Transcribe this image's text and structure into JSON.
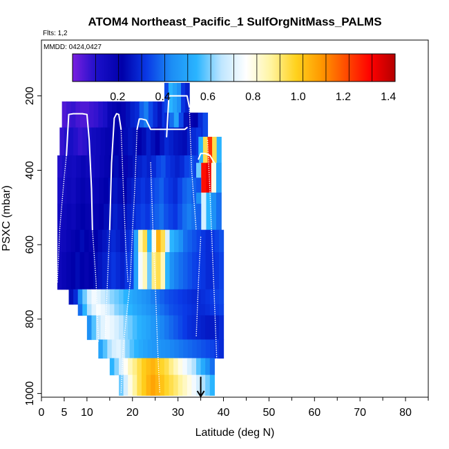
{
  "chart_data": {
    "type": "heatmap",
    "title": "ATOM4 Northeast_Pacific_1 SulfOrgNitMass_PALMS",
    "flights_label": "Flts: 1,2",
    "dates_label": "MMDD: 0424,0427",
    "xlabel": "Latitude (deg N)",
    "ylabel": "PSXC (mbar)",
    "xlim": [
      0,
      85
    ],
    "ylim": [
      1010,
      50
    ],
    "x_ticks": [
      0,
      5,
      10,
      20,
      30,
      40,
      50,
      60,
      70,
      80
    ],
    "x_tick_labels": [
      "0",
      "5",
      "10",
      "20",
      "30",
      "40",
      "50",
      "60",
      "70",
      "80"
    ],
    "x_minor_ticks": [
      15,
      25,
      35,
      45,
      55,
      65,
      75,
      85
    ],
    "y_ticks": [
      200,
      400,
      600,
      800,
      1000
    ],
    "y_tick_labels": [
      "200",
      "400",
      "600",
      "800",
      "1000"
    ],
    "colorbar": {
      "range": [
        0,
        1.43
      ],
      "ticks": [
        0.2,
        0.4,
        0.6,
        0.8,
        1.0,
        1.2,
        1.4
      ],
      "tick_labels": [
        "0.2",
        "0.4",
        "0.6",
        "0.8",
        "1.0",
        "1.2",
        "1.4"
      ],
      "colors": [
        "#7a1fe0",
        "#1a0fc8",
        "#0000aa",
        "#0a3ae6",
        "#1c8ef5",
        "#2ab4ff",
        "#bfe6ff",
        "#ffffff",
        "#fff4a0",
        "#ffd21e",
        "#ff9a00",
        "#ff4d00",
        "#ff0000",
        "#b40000"
      ]
    },
    "arrow_marker": {
      "x": 35,
      "y_top": 955,
      "y_bottom": 1008
    },
    "blocks": [
      {
        "y0": 215,
        "y1": 285,
        "x0": 4.5,
        "x1": 28.5,
        "vals": [
          0.05,
          0.07,
          0.08,
          0.06,
          0.05,
          0.05,
          0.07,
          0.08,
          0.1,
          0.12,
          0.18,
          0.2,
          0.22,
          0.2,
          0.25,
          0.28,
          0.3,
          0.38,
          0.42,
          0.35,
          0.3,
          0.26,
          0.32,
          0.28
        ]
      },
      {
        "y0": 165,
        "y1": 245,
        "x0": 27,
        "x1": 32.5,
        "vals": [
          0.35,
          0.55,
          0.5,
          0.45,
          0.32,
          0.28
        ]
      },
      {
        "y0": 245,
        "y1": 310,
        "x0": 27,
        "x1": 36.5,
        "vals": [
          0.3,
          0.4,
          0.5,
          0.35,
          0.25,
          0.2,
          0.22,
          0.3,
          0.35
        ]
      },
      {
        "y0": 285,
        "y1": 360,
        "x0": 4,
        "x1": 35,
        "vals": [
          0.08,
          0.1,
          0.12,
          0.1,
          0.08,
          0.09,
          0.12,
          0.15,
          0.16,
          0.18,
          0.2,
          0.19,
          0.22,
          0.2,
          0.24,
          0.26,
          0.25,
          0.22,
          0.24,
          0.28,
          0.25,
          0.22,
          0.26,
          0.3,
          0.28,
          0.26,
          0.25,
          0.24,
          0.28,
          0.3,
          0.32
        ]
      },
      {
        "y0": 310,
        "y1": 380,
        "x0": 34.5,
        "x1": 39.5,
        "vals": [
          0.55,
          0.95,
          1.25,
          0.95,
          0.55
        ]
      },
      {
        "y0": 360,
        "y1": 420,
        "x0": 3.5,
        "x1": 34.5,
        "vals": [
          0.1,
          0.12,
          0.15,
          0.14,
          0.16,
          0.18,
          0.16,
          0.14,
          0.16,
          0.18,
          0.2,
          0.22,
          0.24,
          0.22,
          0.2,
          0.24,
          0.26,
          0.28,
          0.3,
          0.28,
          0.3,
          0.34,
          0.36,
          0.32,
          0.3,
          0.28,
          0.3,
          0.34,
          0.36,
          0.34
        ]
      },
      {
        "y0": 380,
        "y1": 460,
        "x0": 34,
        "x1": 39.5,
        "vals": [
          0.6,
          1.3,
          1.35,
          0.8,
          0.5
        ]
      },
      {
        "y0": 420,
        "y1": 490,
        "x0": 3.5,
        "x1": 35,
        "vals": [
          0.12,
          0.14,
          0.16,
          0.15,
          0.18,
          0.2,
          0.18,
          0.16,
          0.18,
          0.2,
          0.22,
          0.24,
          0.26,
          0.24,
          0.22,
          0.26,
          0.28,
          0.3,
          0.32,
          0.3,
          0.34,
          0.36,
          0.38,
          0.34,
          0.32,
          0.3,
          0.34,
          0.38,
          0.4,
          0.38,
          0.36
        ]
      },
      {
        "y0": 460,
        "y1": 560,
        "x0": 34,
        "x1": 39.5,
        "vals": [
          0.45,
          0.7,
          0.55,
          0.45,
          0.4
        ]
      },
      {
        "y0": 490,
        "y1": 560,
        "x0": 3.5,
        "x1": 35,
        "vals": [
          0.14,
          0.16,
          0.18,
          0.17,
          0.2,
          0.22,
          0.2,
          0.18,
          0.2,
          0.22,
          0.24,
          0.26,
          0.28,
          0.26,
          0.25,
          0.28,
          0.3,
          0.32,
          0.34,
          0.32,
          0.36,
          0.38,
          0.4,
          0.36,
          0.34,
          0.32,
          0.36,
          0.4,
          0.42,
          0.4,
          0.38
        ]
      },
      {
        "y0": 560,
        "y1": 620,
        "x0": 3.5,
        "x1": 40,
        "vals": [
          0.15,
          0.16,
          0.18,
          0.2,
          0.22,
          0.24,
          0.22,
          0.2,
          0.22,
          0.24,
          0.26,
          0.28,
          0.3,
          0.28,
          0.26,
          0.3,
          0.32,
          0.5,
          0.85,
          0.95,
          0.55,
          0.8,
          1.05,
          0.95,
          0.7,
          0.55,
          0.5,
          0.45,
          0.4,
          0.38,
          0.36,
          0.34,
          0.32,
          0.3,
          0.32,
          0.34,
          0.36
        ]
      },
      {
        "y0": 620,
        "y1": 720,
        "x0": 3.5,
        "x1": 40,
        "vals": [
          0.16,
          0.18,
          0.2,
          0.22,
          0.24,
          0.22,
          0.2,
          0.22,
          0.24,
          0.26,
          0.28,
          0.3,
          0.32,
          0.3,
          0.28,
          0.32,
          0.34,
          0.5,
          0.75,
          0.85,
          0.6,
          0.9,
          0.95,
          0.85,
          0.55,
          0.45,
          0.42,
          0.4,
          0.38,
          0.36,
          0.34,
          0.33,
          0.32,
          0.3,
          0.3,
          0.32,
          0.34
        ]
      },
      {
        "y0": 720,
        "y1": 760,
        "x0": 6,
        "x1": 40,
        "vals": [
          0.25,
          0.3,
          0.45,
          0.6,
          0.7,
          0.75,
          0.72,
          0.68,
          0.65,
          0.62,
          0.6,
          0.58,
          0.55,
          0.52,
          0.5,
          0.48,
          0.46,
          0.44,
          0.42,
          0.4,
          0.38,
          0.36,
          0.35,
          0.34,
          0.33,
          0.32,
          0.31,
          0.3,
          0.3,
          0.31,
          0.32,
          0.33,
          0.34,
          0.35
        ]
      },
      {
        "y0": 760,
        "y1": 790,
        "x0": 8,
        "x1": 40,
        "vals": [
          0.4,
          0.55,
          0.65,
          0.72,
          0.76,
          0.74,
          0.7,
          0.66,
          0.62,
          0.6,
          0.58,
          0.55,
          0.52,
          0.5,
          0.48,
          0.46,
          0.44,
          0.42,
          0.4,
          0.38,
          0.36,
          0.35,
          0.34,
          0.33,
          0.32,
          0.31,
          0.3,
          0.3,
          0.31,
          0.32,
          0.33,
          0.34
        ]
      },
      {
        "y0": 790,
        "y1": 855,
        "x0": 10,
        "x1": 40,
        "vals": [
          0.45,
          0.58,
          0.66,
          0.72,
          0.75,
          0.73,
          0.7,
          0.66,
          0.62,
          0.6,
          0.57,
          0.54,
          0.52,
          0.5,
          0.47,
          0.45,
          0.43,
          0.41,
          0.39,
          0.37,
          0.35,
          0.33,
          0.31,
          0.3,
          0.29,
          0.28,
          0.27,
          0.27,
          0.28,
          0.3
        ]
      },
      {
        "y0": 855,
        "y1": 905,
        "x0": 12.5,
        "x1": 40,
        "vals": [
          0.5,
          0.58,
          0.65,
          0.7,
          0.72,
          0.68,
          0.62,
          0.58,
          0.55,
          0.52,
          0.5,
          0.48,
          0.47,
          0.46,
          0.45,
          0.44,
          0.43,
          0.42,
          0.41,
          0.4,
          0.39,
          0.38,
          0.37,
          0.36,
          0.35,
          0.34,
          0.32,
          0.3
        ]
      },
      {
        "y0": 905,
        "y1": 950,
        "x0": 15,
        "x1": 38,
        "vals": [
          0.55,
          0.62,
          0.7,
          0.78,
          0.85,
          0.9,
          0.95,
          1.0,
          1.03,
          1.05,
          1.02,
          0.98,
          0.95,
          0.9,
          0.85,
          0.8,
          0.75,
          0.7,
          0.65,
          0.58,
          0.52,
          0.45,
          0.4
        ]
      },
      {
        "y0": 950,
        "y1": 1005,
        "x0": 17,
        "x1": 38,
        "vals": [
          0.6,
          0.7,
          0.8,
          0.88,
          0.95,
          1.0,
          1.05,
          1.08,
          1.05,
          1.02,
          0.98,
          0.95,
          0.92,
          0.88,
          0.84,
          0.8,
          0.75,
          0.7,
          0.65,
          0.6,
          0.55
        ]
      }
    ],
    "flight_tracks": [
      {
        "style": "solid",
        "points": [
          [
            5.5,
            360
          ],
          [
            6,
            250
          ],
          [
            7,
            248
          ],
          [
            8,
            248
          ],
          [
            9,
            248
          ],
          [
            10,
            250
          ],
          [
            10.5,
            320
          ],
          [
            11,
            450
          ],
          [
            11.2,
            560
          ]
        ]
      },
      {
        "style": "solid",
        "points": [
          [
            15,
            560
          ],
          [
            15.4,
            380
          ],
          [
            16,
            260
          ],
          [
            16.5,
            248
          ],
          [
            17,
            250
          ],
          [
            17.5,
            290
          ]
        ]
      },
      {
        "style": "solid",
        "points": [
          [
            21,
            290
          ],
          [
            21.5,
            262
          ],
          [
            22,
            262
          ],
          [
            23,
            265
          ],
          [
            24,
            290
          ],
          [
            25,
            290
          ],
          [
            27,
            290
          ],
          [
            29,
            290
          ],
          [
            31.5,
            290
          ],
          [
            32,
            285
          ]
        ]
      },
      {
        "style": "solid",
        "points": [
          [
            27.5,
            310
          ],
          [
            28,
            200
          ],
          [
            29,
            200
          ],
          [
            31,
            200
          ],
          [
            32,
            200
          ],
          [
            32.5,
            230
          ]
        ]
      },
      {
        "style": "solid",
        "points": [
          [
            34.5,
            370
          ],
          [
            35,
            355
          ],
          [
            36,
            355
          ],
          [
            37,
            360
          ],
          [
            38,
            380
          ]
        ]
      },
      {
        "style": "dotted",
        "points": [
          [
            3.5,
            700
          ],
          [
            4,
            560
          ],
          [
            5,
            420
          ],
          [
            5.5,
            360
          ]
        ]
      },
      {
        "style": "dotted",
        "points": [
          [
            11.2,
            560
          ],
          [
            12,
            700
          ],
          [
            12.5,
            860
          ]
        ]
      },
      {
        "style": "dotted",
        "points": [
          [
            15,
            560
          ],
          [
            14.5,
            700
          ],
          [
            14,
            850
          ]
        ]
      },
      {
        "style": "dotted",
        "points": [
          [
            17.5,
            290
          ],
          [
            18,
            450
          ],
          [
            18.5,
            600
          ],
          [
            19,
            700
          ]
        ]
      },
      {
        "style": "dotted",
        "points": [
          [
            21,
            290
          ],
          [
            20.5,
            450
          ],
          [
            20,
            560
          ],
          [
            19.5,
            700
          ],
          [
            18,
            870
          ],
          [
            17.5,
            1000
          ]
        ]
      },
      {
        "style": "dotted",
        "points": [
          [
            24,
            380
          ],
          [
            24.5,
            560
          ],
          [
            25,
            700
          ],
          [
            25.5,
            870
          ],
          [
            26,
            1000
          ]
        ]
      },
      {
        "style": "dotted",
        "points": [
          [
            32.5,
            230
          ],
          [
            33,
            400
          ],
          [
            34,
            560
          ]
        ]
      },
      {
        "style": "dotted",
        "points": [
          [
            36.5,
            320
          ],
          [
            37,
            450
          ],
          [
            37.5,
            600
          ],
          [
            38,
            750
          ],
          [
            38.5,
            900
          ],
          [
            38.5,
            1000
          ]
        ]
      },
      {
        "style": "dotted",
        "points": [
          [
            35,
            580
          ],
          [
            34.5,
            700
          ],
          [
            34,
            850
          ]
        ]
      }
    ]
  }
}
